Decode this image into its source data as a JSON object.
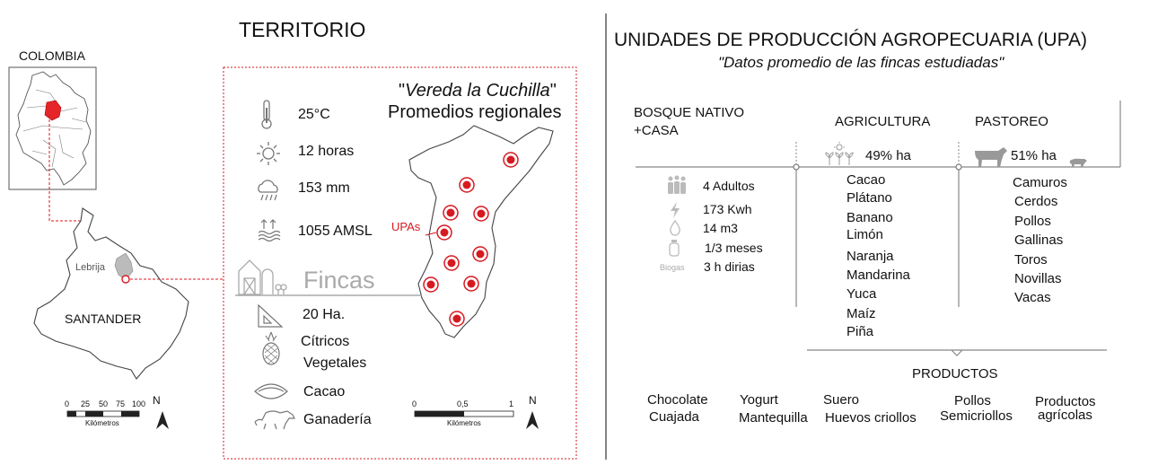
{
  "territorio": {
    "title": "TERRITORIO",
    "colombia_label": "COLOMBIA",
    "santander_label": "SANTANDER",
    "lebrija_label": "Lebrija",
    "scale_small": {
      "ticks": [
        "0",
        "25",
        "50",
        "75",
        "100"
      ],
      "unit": "Kilómetros",
      "north": "N"
    },
    "scale_large": {
      "ticks": [
        "0",
        "0,5",
        "1"
      ],
      "unit": "Kilómetros",
      "north": "N"
    },
    "vereda_title": "\"Vereda la Cuchilla\"",
    "vereda_subtitle": "Promedios regionales",
    "upas_label": "UPAs",
    "fincas_label": "Fincas",
    "climate": [
      {
        "icon": "thermometer-icon",
        "value": "25°C"
      },
      {
        "icon": "sun-icon",
        "value": "12 horas"
      },
      {
        "icon": "rain-cloud-icon",
        "value": "153 mm"
      },
      {
        "icon": "elevation-icon",
        "value": "1055 AMSL"
      }
    ],
    "farm_features": [
      {
        "icon": "set-square-icon",
        "value": "20 Ha."
      },
      {
        "icon": "pineapple-icon",
        "value": "Cítricos"
      },
      {
        "icon": "none",
        "value": "Vegetales"
      },
      {
        "icon": "cacao-pod-icon",
        "value": "Cacao"
      },
      {
        "icon": "cattle-icon",
        "value": "Ganadería"
      }
    ],
    "accent_color": "#d71920"
  },
  "upa": {
    "title": "UNIDADES DE PRODUCCIÓN AGROPECUARIA (UPA)",
    "subtitle": "\"Datos promedio de las fincas estudiadas\"",
    "bosque_label_1": "BOSQUE NATIVO",
    "bosque_label_2": "+CASA",
    "agricultura_label": "AGRICULTURA",
    "agricultura_pct": "49% ha",
    "pastoreo_label": "PASTOREO",
    "pastoreo_pct": "51% ha",
    "household": [
      {
        "icon": "family-icon",
        "value": "4 Adultos"
      },
      {
        "icon": "lightning-icon",
        "value": "173 Kwh"
      },
      {
        "icon": "water-drop-icon",
        "value": "14 m3"
      },
      {
        "icon": "gas-cylinder-icon",
        "value": "1/3 meses"
      },
      {
        "icon_label": "Biogas",
        "value": "3 h dirias"
      }
    ],
    "crops": [
      "Cacao",
      "Plátano",
      "Banano",
      "Limón",
      "Naranja",
      "Mandarina",
      "Yuca",
      "Maíz",
      "Piña"
    ],
    "livestock": [
      "Camuros",
      "Cerdos",
      "Pollos",
      "Gallinas",
      "Toros",
      "Novillas",
      "Vacas"
    ],
    "productos_label": "PRODUCTOS",
    "products": [
      {
        "line1": "Chocolate",
        "line2": "Cuajada"
      },
      {
        "line1": "Yogurt",
        "line2": "Mantequilla"
      },
      {
        "line1": "Suero",
        "line2": "Huevos criollos"
      },
      {
        "line1": "Pollos",
        "line2": "Semicriollos"
      },
      {
        "line1": "Productos",
        "line2": "agrícolas"
      }
    ]
  }
}
